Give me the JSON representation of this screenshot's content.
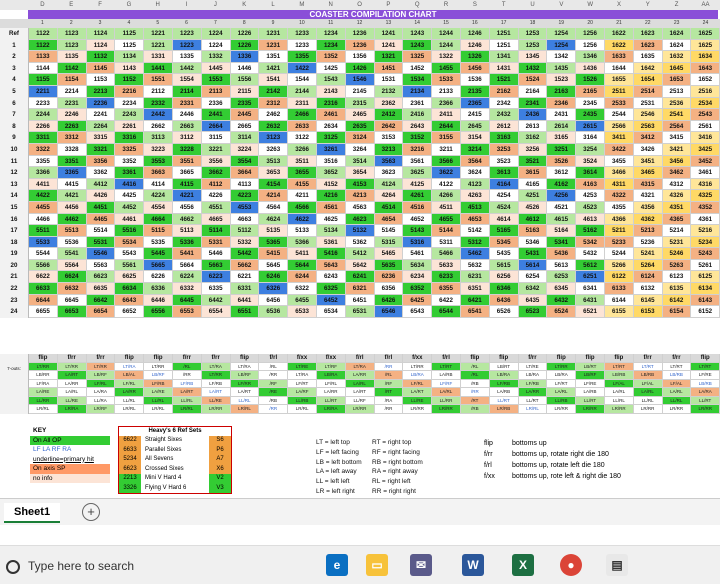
{
  "window": {
    "title": "COASTER COMPILATION CHART"
  },
  "col_letters": [
    "D",
    "E",
    "F",
    "G",
    "H",
    "I",
    "J",
    "K",
    "L",
    "M",
    "N",
    "O",
    "P",
    "Q",
    "R",
    "S",
    "T",
    "U",
    "V",
    "W",
    "X",
    "Y",
    "Z",
    "AA"
  ],
  "col_nums": [
    "1",
    "2",
    "3",
    "4",
    "5",
    "6",
    "7",
    "8",
    "9",
    "10",
    "11",
    "12",
    "13",
    "14",
    "15",
    "16",
    "17",
    "18",
    "19",
    "20",
    "21",
    "22",
    "23",
    "24"
  ],
  "ref_label": "Ref",
  "ref_row": [
    "1122",
    "1123",
    "1124",
    "1125",
    "1221",
    "1223",
    "1224",
    "1226",
    "1231",
    "1233",
    "1234",
    "1236",
    "1241",
    "1243",
    "1244",
    "1246",
    "1251",
    "1253",
    "1254",
    "1256",
    "1622",
    "1623",
    "1624",
    "1625"
  ],
  "rows": [
    {
      "n": "1",
      "v": [
        "1122",
        "1123",
        "1124",
        "1125",
        "1221",
        "1223",
        "1224",
        "1226",
        "1231",
        "1233",
        "1234",
        "1236",
        "1241",
        "1243",
        "1244",
        "1246",
        "1251",
        "1253",
        "1254",
        "1256",
        "1622",
        "1623",
        "1624",
        "1625"
      ]
    },
    {
      "n": "2",
      "v": [
        "1133",
        "1135",
        "1132",
        "1134",
        "1331",
        "1335",
        "1332",
        "1336",
        "1351",
        "1355",
        "1352",
        "1356",
        "1321",
        "1325",
        "1322",
        "1326",
        "1341",
        "1345",
        "1342",
        "1346",
        "1633",
        "1635",
        "1632",
        "1634"
      ]
    },
    {
      "n": "3",
      "v": [
        "1144",
        "1142",
        "1145",
        "1143",
        "1441",
        "1442",
        "1445",
        "1446",
        "1421",
        "1422",
        "1425",
        "1426",
        "1451",
        "1452",
        "1455",
        "1456",
        "1431",
        "1432",
        "1435",
        "1436",
        "1644",
        "1642",
        "1645",
        "1643"
      ]
    },
    {
      "n": "4",
      "v": [
        "1155",
        "1154",
        "1153",
        "1152",
        "1551",
        "1554",
        "1553",
        "1556",
        "1541",
        "1544",
        "1543",
        "1546",
        "1531",
        "1534",
        "1533",
        "1536",
        "1521",
        "1524",
        "1523",
        "1526",
        "1655",
        "1654",
        "1653",
        "1652"
      ]
    },
    {
      "n": "5",
      "v": [
        "2211",
        "2214",
        "2213",
        "2216",
        "2112",
        "2114",
        "2113",
        "2115",
        "2142",
        "2144",
        "2143",
        "2145",
        "2132",
        "2134",
        "2133",
        "2135",
        "2162",
        "2164",
        "2163",
        "2165",
        "2511",
        "2514",
        "2513",
        "2516"
      ]
    },
    {
      "n": "6",
      "v": [
        "2233",
        "2231",
        "2236",
        "2234",
        "2332",
        "2331",
        "2336",
        "2335",
        "2312",
        "2311",
        "2316",
        "2315",
        "2362",
        "2361",
        "2366",
        "2365",
        "2342",
        "2341",
        "2346",
        "2345",
        "2533",
        "2531",
        "2536",
        "2534"
      ]
    },
    {
      "n": "7",
      "v": [
        "2244",
        "2246",
        "2241",
        "2243",
        "2442",
        "2446",
        "2441",
        "2445",
        "2462",
        "2466",
        "2461",
        "2465",
        "2412",
        "2416",
        "2411",
        "2415",
        "2432",
        "2436",
        "2431",
        "2435",
        "2544",
        "2546",
        "2541",
        "2543"
      ]
    },
    {
      "n": "8",
      "v": [
        "2266",
        "2263",
        "2264",
        "2261",
        "2662",
        "2663",
        "2664",
        "2665",
        "2632",
        "2633",
        "2634",
        "2635",
        "2642",
        "2643",
        "2644",
        "2645",
        "2612",
        "2613",
        "2614",
        "2615",
        "2566",
        "2563",
        "2564",
        "2561"
      ]
    },
    {
      "n": "9",
      "v": [
        "3311",
        "3312",
        "3315",
        "3316",
        "3113",
        "3112",
        "3115",
        "3114",
        "3123",
        "3122",
        "3125",
        "3124",
        "3153",
        "3152",
        "3155",
        "3154",
        "3163",
        "3162",
        "3165",
        "3164",
        "3411",
        "3412",
        "3415",
        "3416"
      ]
    },
    {
      "n": "10",
      "v": [
        "3322",
        "3328",
        "3321",
        "3325",
        "3223",
        "3228",
        "3221",
        "3224",
        "3263",
        "3266",
        "3261",
        "3264",
        "3213",
        "3216",
        "3211",
        "3214",
        "3253",
        "3256",
        "3251",
        "3254",
        "3422",
        "3426",
        "3421",
        "3425"
      ]
    },
    {
      "n": "11",
      "v": [
        "3355",
        "3351",
        "3356",
        "3352",
        "3553",
        "3551",
        "3556",
        "3554",
        "3513",
        "3511",
        "3516",
        "3514",
        "3563",
        "3561",
        "3566",
        "3564",
        "3523",
        "3521",
        "3526",
        "3524",
        "3455",
        "3451",
        "3456",
        "3452"
      ]
    },
    {
      "n": "12",
      "v": [
        "3366",
        "3365",
        "3362",
        "3361",
        "3663",
        "3665",
        "3662",
        "3664",
        "3653",
        "3655",
        "3652",
        "3654",
        "3623",
        "3625",
        "3622",
        "3624",
        "3613",
        "3615",
        "3612",
        "3614",
        "3466",
        "3465",
        "3462",
        "3461"
      ]
    },
    {
      "n": "13",
      "v": [
        "4411",
        "4415",
        "4412",
        "4416",
        "4114",
        "4115",
        "4112",
        "4113",
        "4154",
        "4155",
        "4152",
        "4153",
        "4124",
        "4125",
        "4122",
        "4123",
        "4164",
        "4165",
        "4162",
        "4163",
        "4311",
        "4315",
        "4312",
        "4316"
      ]
    },
    {
      "n": "14",
      "v": [
        "4422",
        "4421",
        "4426",
        "4425",
        "4224",
        "4221",
        "4226",
        "4223",
        "4214",
        "4211",
        "4216",
        "4213",
        "4264",
        "4261",
        "4266",
        "4263",
        "4254",
        "4251",
        "4256",
        "4253",
        "4322",
        "4321",
        "4326",
        "4325"
      ]
    },
    {
      "n": "15",
      "v": [
        "4455",
        "4456",
        "4451",
        "4452",
        "4554",
        "4556",
        "4551",
        "4553",
        "4564",
        "4566",
        "4561",
        "4563",
        "4514",
        "4516",
        "4511",
        "4513",
        "4524",
        "4526",
        "4521",
        "4523",
        "4355",
        "4356",
        "4351",
        "4352"
      ]
    },
    {
      "n": "16",
      "v": [
        "4466",
        "4462",
        "4465",
        "4461",
        "4664",
        "4662",
        "4665",
        "4663",
        "4624",
        "4622",
        "4625",
        "4623",
        "4654",
        "4652",
        "4655",
        "4653",
        "4614",
        "4612",
        "4615",
        "4613",
        "4366",
        "4362",
        "4365",
        "4361"
      ]
    },
    {
      "n": "17",
      "v": [
        "5511",
        "5513",
        "5514",
        "5516",
        "5115",
        "5113",
        "5114",
        "5112",
        "5135",
        "5133",
        "5134",
        "5132",
        "5145",
        "5143",
        "5144",
        "5142",
        "5165",
        "5163",
        "5164",
        "5162",
        "5211",
        "5213",
        "5214",
        "5216"
      ]
    },
    {
      "n": "18",
      "v": [
        "5533",
        "5536",
        "5531",
        "5534",
        "5335",
        "5336",
        "5331",
        "5332",
        "5365",
        "5366",
        "5361",
        "5362",
        "5315",
        "5316",
        "5311",
        "5312",
        "5345",
        "5346",
        "5341",
        "5342",
        "5233",
        "5236",
        "5231",
        "5234"
      ]
    },
    {
      "n": "19",
      "v": [
        "5544",
        "5541",
        "5546",
        "5543",
        "5445",
        "5441",
        "5446",
        "5442",
        "5415",
        "5411",
        "5416",
        "5412",
        "5465",
        "5461",
        "5466",
        "5462",
        "5435",
        "5431",
        "5436",
        "5432",
        "5244",
        "5241",
        "5246",
        "5243"
      ]
    },
    {
      "n": "20",
      "v": [
        "5566",
        "5564",
        "5563",
        "5561",
        "5665",
        "5664",
        "5663",
        "5662",
        "5645",
        "5644",
        "5643",
        "5642",
        "5635",
        "5634",
        "5633",
        "5632",
        "5615",
        "5614",
        "5613",
        "5612",
        "5266",
        "5264",
        "5263",
        "5261"
      ]
    },
    {
      "n": "21",
      "v": [
        "6622",
        "6624",
        "6623",
        "6625",
        "6226",
        "6224",
        "6223",
        "6221",
        "6246",
        "6244",
        "6243",
        "6241",
        "6236",
        "6234",
        "6233",
        "6231",
        "6256",
        "6254",
        "6253",
        "6251",
        "6122",
        "6124",
        "6123",
        "6125"
      ]
    },
    {
      "n": "22",
      "v": [
        "6633",
        "6632",
        "6635",
        "6634",
        "6336",
        "6332",
        "6335",
        "6331",
        "6326",
        "6322",
        "6325",
        "6321",
        "6356",
        "6352",
        "6355",
        "6351",
        "6346",
        "6342",
        "6345",
        "6341",
        "6133",
        "6132",
        "6135",
        "6134"
      ]
    },
    {
      "n": "23",
      "v": [
        "6644",
        "6645",
        "6642",
        "6643",
        "6446",
        "6445",
        "6442",
        "6441",
        "6456",
        "6455",
        "6452",
        "6451",
        "6426",
        "6425",
        "6422",
        "6421",
        "6436",
        "6435",
        "6432",
        "6431",
        "6144",
        "6145",
        "6142",
        "6143"
      ]
    },
    {
      "n": "24",
      "v": [
        "6655",
        "6653",
        "6654",
        "6652",
        "6556",
        "6553",
        "6554",
        "6551",
        "6536",
        "6533",
        "6534",
        "6531",
        "6546",
        "6543",
        "6544",
        "6541",
        "6526",
        "6523",
        "6524",
        "6521",
        "6155",
        "6153",
        "6154",
        "6152"
      ]
    }
  ],
  "flip_labels": [
    "flip",
    "f/rr",
    "f/rr",
    "flip",
    "flip",
    "f/rr",
    "f/rr",
    "flip",
    "f/rl",
    "f/xx",
    "f/xx",
    "f/rl",
    "f/rl",
    "f/xx",
    "f/rl",
    "flip",
    "flip",
    "f/rr",
    "flip",
    "flip",
    "flip",
    "f/rr",
    "f/rr",
    "flip"
  ],
  "flip_side_label": "7-outs:",
  "flip_rows": [
    [
      "LT/RR",
      "LT/RR",
      "LT/RR",
      "LT/RA",
      "LT/RR",
      "/RL",
      "LT/RA",
      "LT/RA",
      "/RL",
      "LT/RE",
      "LT/RF",
      "LT/RA",
      "/RR",
      "LT/RR",
      "LT/RT",
      "/RL",
      "LB/RT",
      "LT/RE",
      "LT/RR",
      "LB/RT",
      "LT/RT",
      "LT/RT",
      "LT/RT",
      "LT/RT"
    ],
    [
      "LB/RR",
      "LA/RT",
      "LB/RF",
      "LB/AL",
      "LB/RF",
      "/RR",
      "LT/RR",
      "LB/RF",
      "/RR",
      "LT/RA",
      "LB/RA",
      "LA/RR",
      "/RL",
      "LB/RA",
      "LA/RB",
      "/RL",
      "LB/RA",
      "LB/RA",
      "LB/RA",
      "LB/RF",
      "LB/RB",
      "LB/RB",
      "LB/RB",
      "LF/RE"
    ],
    [
      "LF/RA",
      "LA/RR",
      "LF/RL",
      "LF/RL",
      "LF/RB",
      "LF/RB",
      "LF/RB",
      "LF/RR",
      "/RF",
      "LF/RT",
      "LF/RL",
      "LA/RL",
      "/RF",
      "LF/RL",
      "LF/RF",
      "/RB",
      "LF/RB",
      "LF/RB",
      "LF/RT",
      "LF/RE",
      "LF/AL",
      "LF/AL",
      "LF/AL",
      "LB/RB"
    ],
    [
      "LA/RE",
      "LA/RL",
      "LA/RA",
      "LA/RR",
      "LA/RE",
      "LA/RT",
      "LA/RT",
      "LA/RT",
      "/RE",
      "LA/RF",
      "LA/RR",
      "LA/RT",
      "/RT",
      "LA/RT",
      "LA/RL",
      "/RR",
      "LA/RB",
      "LA/RR",
      "LA/RL",
      "LA/RB",
      "LA/RL",
      "LA/RL",
      "LA/RL",
      "LA/RA"
    ],
    [
      "LL/RR",
      "LL/RE",
      "LL/RA",
      "LL/RL",
      "LL/RL",
      "LL/RL",
      "LL/RE",
      "LL/RL",
      "/RB",
      "LL/RB",
      "LL/RT",
      "LL/RF",
      "/RA",
      "LL/RE",
      "LL/RR",
      "/RT",
      "LL/RT",
      "LL/RT",
      "LL/RB",
      "LL/RT",
      "LL/RL",
      "LL/RL",
      "LL/RL",
      "LL/RT"
    ],
    [
      "LR/RL",
      "LR/RA",
      "LR/RF",
      "LR/RL",
      "LR/RL",
      "LR/RL",
      "LR/RR",
      "LR/RL",
      "/RR",
      "LR/RL",
      "LR/RA",
      "LR/RR",
      "/RR",
      "LR/RR",
      "LR/RR",
      "/RB",
      "LR/RB",
      "LR/RL",
      "LR/RR",
      "LR/RR",
      "LR/RR",
      "LR/RR",
      "LR/RR",
      "LR/RR"
    ]
  ],
  "key": {
    "title": "KEY",
    "items": [
      {
        "label": "On All OP",
        "color": "#33cc33"
      },
      {
        "label": "LF LA RF RA",
        "color": "#ffffff",
        "text_color": "#3366cc"
      },
      {
        "label": "underline=primary hit",
        "color": "#ffffff"
      },
      {
        "label": "On axis SP",
        "color": "#ff9966"
      },
      {
        "label": "no info",
        "color": "#fce4d6"
      }
    ]
  },
  "heavy": {
    "title": "Heavy's 6 Ref Sets",
    "rows": [
      {
        "code": "6622",
        "name": "Straight Sixes",
        "tag": "S6",
        "bg": "#f0a040",
        "tagbg": "#f0a040"
      },
      {
        "code": "6633",
        "name": "Parallel Sixes",
        "tag": "P6",
        "bg": "#f0a040",
        "tagbg": "#f0a040"
      },
      {
        "code": "5234",
        "name": "All Sevens",
        "tag": "A7",
        "bg": "#f0a040",
        "tagbg": "#f0a040"
      },
      {
        "code": "6623",
        "name": "Crossed Sixes",
        "tag": "X6",
        "bg": "#f0a040",
        "tagbg": "#f0a040"
      },
      {
        "code": "2213",
        "name": "Mini V Hard 4",
        "tag": "V2",
        "bg": "#33cc33",
        "tagbg": "#33cc33"
      },
      {
        "code": "3326",
        "name": "Flying V Hard 6",
        "tag": "V3",
        "bg": "#33cc33",
        "tagbg": "#33cc33"
      }
    ]
  },
  "legend": [
    [
      "LT = left top",
      "RT = right top"
    ],
    [
      "LF = left facing",
      "RF = right facing"
    ],
    [
      "LB = left bottom",
      "RB = right bottom"
    ],
    [
      "LA = left away",
      "RA = right away"
    ],
    [
      "LL = left left",
      "RL = right left"
    ],
    [
      "LR = left right",
      "RR = right right"
    ]
  ],
  "flip_key": [
    {
      "code": "flip",
      "desc": "bottoms up"
    },
    {
      "code": "f/rr",
      "desc": "bottoms up, rotate right die 180"
    },
    {
      "code": "f/rl",
      "desc": "bottoms up, rotate left die 180"
    },
    {
      "code": "f/xx",
      "desc": "bottoms up, rote left & right die 180"
    }
  ],
  "sheet_tab": "Sheet1",
  "add_sheet": "+",
  "taskbar": {
    "search_placeholder": "Type here to search"
  },
  "colors": {
    "orange": "#f0a040",
    "green": "#33cc33",
    "peach": "#fce4d6",
    "purple": "#8a4fd8",
    "blue": "#3d7fe0",
    "lightgreen": "#b6e7a0",
    "salmon": "#f4b183"
  }
}
